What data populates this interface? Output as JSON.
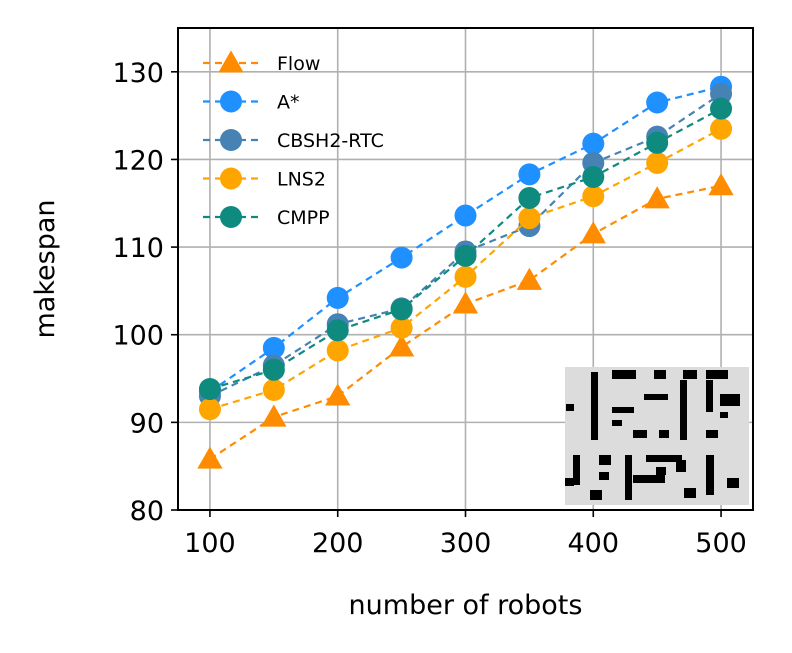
{
  "chart_data": {
    "type": "line",
    "title": "",
    "xlabel": "number of robots",
    "ylabel": "makespan",
    "xlim": [
      75,
      525
    ],
    "ylim": [
      80,
      135
    ],
    "xticks": [
      "100",
      "200",
      "300",
      "400",
      "500"
    ],
    "yticks": [
      "80",
      "90",
      "100",
      "110",
      "120",
      "130"
    ],
    "grid": true,
    "legend_position": "top-left",
    "x": [
      100,
      150,
      200,
      250,
      300,
      350,
      400,
      450,
      500
    ],
    "series": [
      {
        "name": "Flow",
        "color": "#ff8c00",
        "marker": "triangle",
        "values": [
          85.8,
          90.6,
          93.0,
          98.6,
          103.5,
          106.2,
          111.5,
          115.5,
          117.0
        ]
      },
      {
        "name": "A*",
        "color": "#1e90ff",
        "marker": "circle",
        "values": [
          93.5,
          98.5,
          104.2,
          108.8,
          113.6,
          118.3,
          121.8,
          126.5,
          128.3
        ]
      },
      {
        "name": "CBSH2-RTC",
        "color": "#4682b4",
        "marker": "circle",
        "values": [
          93.0,
          96.5,
          101.2,
          103.0,
          109.5,
          112.4,
          119.6,
          122.6,
          127.5
        ]
      },
      {
        "name": "LNS2",
        "color": "#ffa500",
        "marker": "circle",
        "values": [
          91.5,
          93.7,
          98.2,
          100.8,
          106.6,
          113.3,
          115.8,
          119.6,
          123.5
        ]
      },
      {
        "name": "CMPP",
        "color": "#0e8a7e",
        "marker": "circle",
        "values": [
          93.8,
          96.0,
          100.5,
          102.9,
          109.0,
          115.6,
          118.0,
          121.9,
          125.8
        ]
      }
    ]
  },
  "inset": {
    "description_icon": "map-thumbnail",
    "background": "#dcdcdc",
    "obstacle_color": "#000000"
  }
}
